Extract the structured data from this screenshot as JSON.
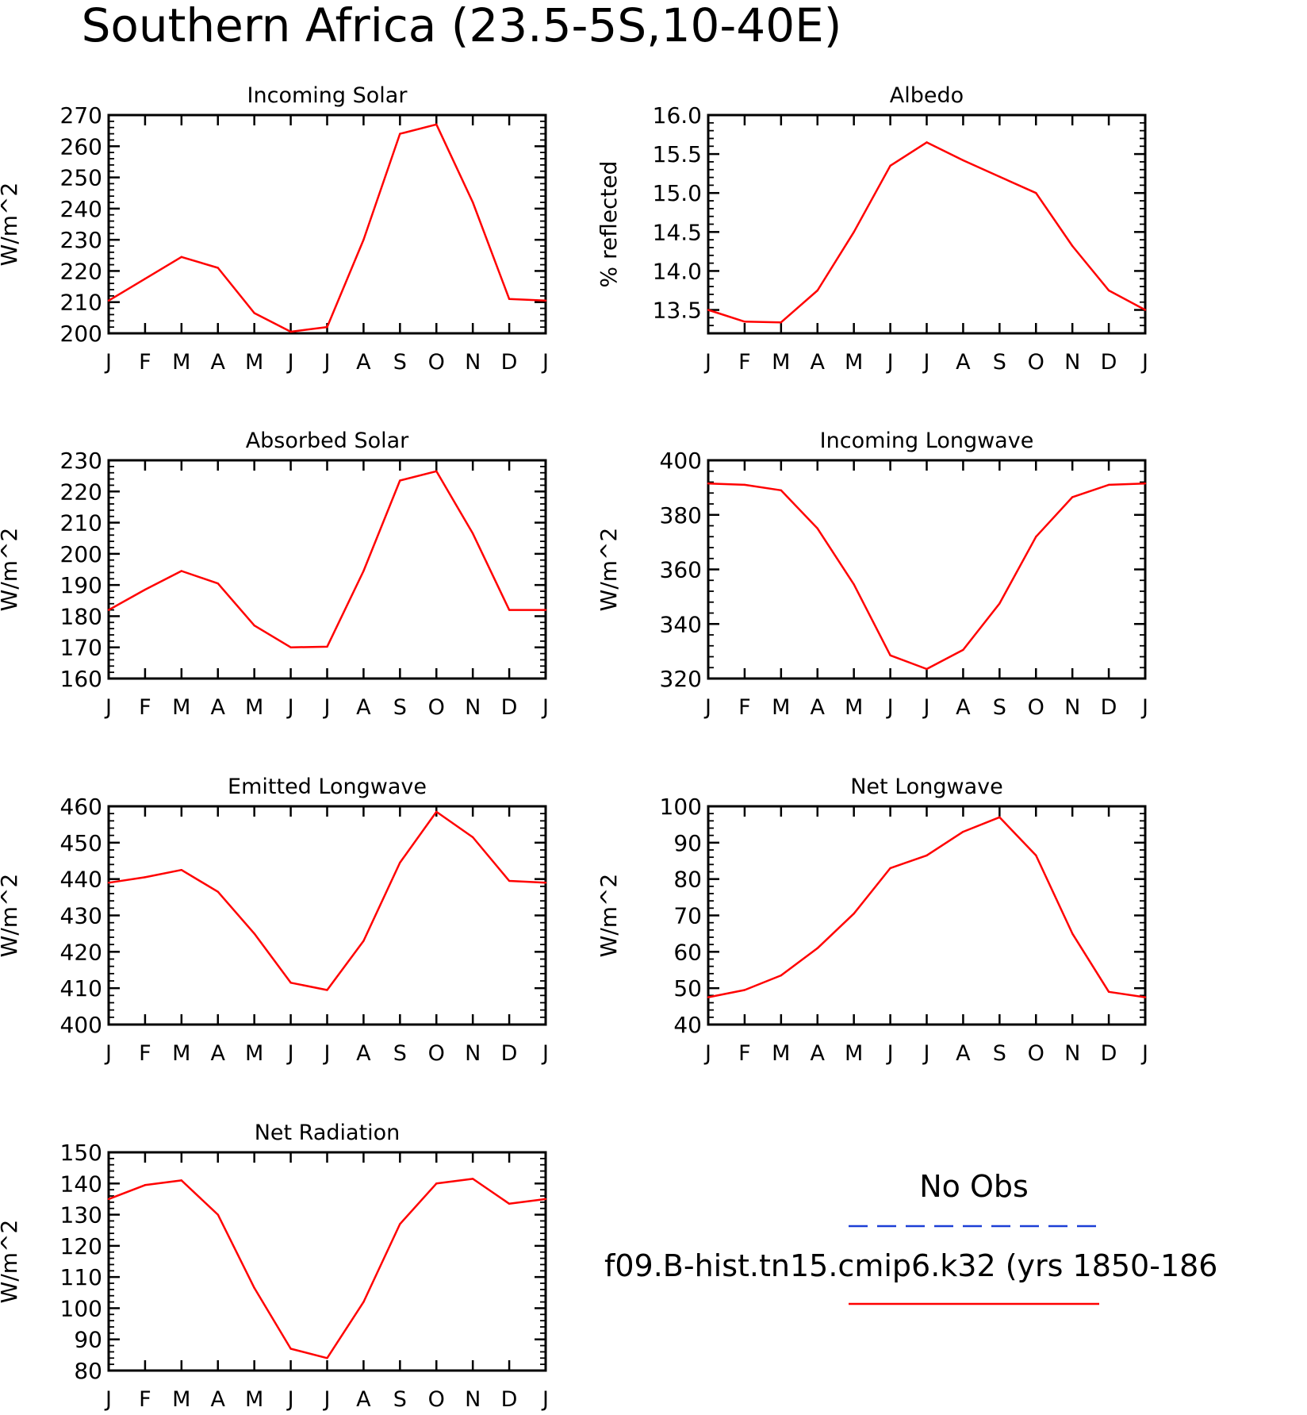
{
  "figure": {
    "title": "Southern Africa (23.5-5S,10-40E)"
  },
  "months": [
    "J",
    "F",
    "M",
    "A",
    "M",
    "J",
    "J",
    "A",
    "S",
    "O",
    "N",
    "D",
    "J"
  ],
  "legend": {
    "obs_label": "No Obs",
    "obs_color": "#1c3fd6",
    "model_label": "f09.B-hist.tn15.cmip6.k32 (yrs 1850-186",
    "model_color": "#ff0000"
  },
  "chart_data": [
    {
      "type": "line",
      "title": "Incoming Solar",
      "ylabel": "W/m^2",
      "ylim": [
        200,
        270
      ],
      "yticks": [
        "200",
        "210",
        "220",
        "230",
        "240",
        "250",
        "260",
        "270"
      ],
      "categories": [
        "J",
        "F",
        "M",
        "A",
        "M",
        "J",
        "J",
        "A",
        "S",
        "O",
        "N",
        "D",
        "J"
      ],
      "series": [
        {
          "color": "#ff0000",
          "values": [
            210.5,
            217.5,
            224.5,
            221,
            206.5,
            200.5,
            202,
            230,
            264,
            267,
            242,
            211,
            210.5
          ]
        }
      ]
    },
    {
      "type": "line",
      "title": "Albedo",
      "ylabel": "% reflected",
      "ylim": [
        13.2,
        16.0
      ],
      "yticks": [
        "13.5",
        "14.0",
        "14.5",
        "15.0",
        "15.5",
        "16.0"
      ],
      "categories": [
        "J",
        "F",
        "M",
        "A",
        "M",
        "J",
        "J",
        "A",
        "S",
        "O",
        "N",
        "D",
        "J"
      ],
      "series": [
        {
          "color": "#ff0000",
          "values": [
            13.5,
            13.35,
            13.34,
            13.75,
            14.5,
            15.35,
            15.65,
            15.42,
            15.21,
            15.0,
            14.32,
            13.75,
            13.5
          ]
        }
      ]
    },
    {
      "type": "line",
      "title": "Absorbed Solar",
      "ylabel": "W/m^2",
      "ylim": [
        160,
        230
      ],
      "yticks": [
        "160",
        "170",
        "180",
        "190",
        "200",
        "210",
        "220",
        "230"
      ],
      "categories": [
        "J",
        "F",
        "M",
        "A",
        "M",
        "J",
        "J",
        "A",
        "S",
        "O",
        "N",
        "D",
        "J"
      ],
      "series": [
        {
          "color": "#ff0000",
          "values": [
            182,
            188.5,
            194.5,
            190.5,
            177,
            170,
            170.2,
            194.5,
            223.5,
            226.5,
            206.5,
            182,
            182
          ]
        }
      ]
    },
    {
      "type": "line",
      "title": "Incoming Longwave",
      "ylabel": "W/m^2",
      "ylim": [
        320,
        400
      ],
      "yticks": [
        "320",
        "340",
        "360",
        "380",
        "400"
      ],
      "categories": [
        "J",
        "F",
        "M",
        "A",
        "M",
        "J",
        "J",
        "A",
        "S",
        "O",
        "N",
        "D",
        "J"
      ],
      "series": [
        {
          "color": "#ff0000",
          "values": [
            391.5,
            391,
            389,
            375,
            354.5,
            328.5,
            323.5,
            330.5,
            347.5,
            372,
            386.5,
            391,
            391.5
          ]
        }
      ]
    },
    {
      "type": "line",
      "title": "Emitted Longwave",
      "ylabel": "W/m^2",
      "ylim": [
        400,
        460
      ],
      "yticks": [
        "400",
        "410",
        "420",
        "430",
        "440",
        "450",
        "460"
      ],
      "categories": [
        "J",
        "F",
        "M",
        "A",
        "M",
        "J",
        "J",
        "A",
        "S",
        "O",
        "N",
        "D",
        "J"
      ],
      "series": [
        {
          "color": "#ff0000",
          "values": [
            439,
            440.5,
            442.5,
            436.5,
            425,
            411.5,
            409.5,
            423,
            444.5,
            458.5,
            451.5,
            439.5,
            439
          ]
        }
      ]
    },
    {
      "type": "line",
      "title": "Net Longwave",
      "ylabel": "W/m^2",
      "ylim": [
        40,
        100
      ],
      "yticks": [
        "40",
        "50",
        "60",
        "70",
        "80",
        "90",
        "100"
      ],
      "categories": [
        "J",
        "F",
        "M",
        "A",
        "M",
        "J",
        "J",
        "A",
        "S",
        "O",
        "N",
        "D",
        "J"
      ],
      "series": [
        {
          "color": "#ff0000",
          "values": [
            47.5,
            49.5,
            53.5,
            61,
            70.5,
            83,
            86.5,
            93,
            97,
            86.5,
            65,
            49,
            47.5
          ]
        }
      ]
    },
    {
      "type": "line",
      "title": "Net Radiation",
      "ylabel": "W/m^2",
      "ylim": [
        80,
        150
      ],
      "yticks": [
        "80",
        "90",
        "100",
        "110",
        "120",
        "130",
        "140",
        "150"
      ],
      "categories": [
        "J",
        "F",
        "M",
        "A",
        "M",
        "J",
        "J",
        "A",
        "S",
        "O",
        "N",
        "D",
        "J"
      ],
      "series": [
        {
          "color": "#ff0000",
          "values": [
            135,
            139.5,
            141,
            130,
            106.5,
            87,
            84,
            102,
            127,
            140,
            141.5,
            133.5,
            135
          ]
        }
      ]
    }
  ]
}
